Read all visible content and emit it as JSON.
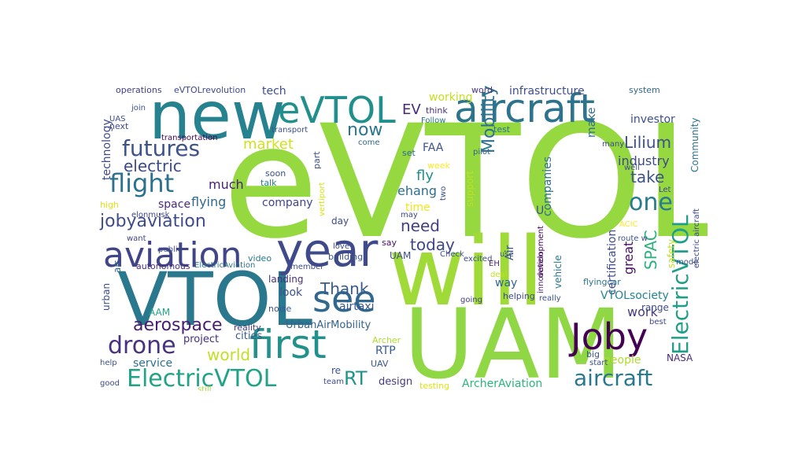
{
  "cloud": {
    "words": [
      {
        "text": "eVTOL",
        "color": "#95d840"
      },
      {
        "text": "UAM",
        "color": "#8fd744"
      },
      {
        "text": "will",
        "color": "#a0da39"
      },
      {
        "text": "VTOL",
        "color": "#2a788e"
      },
      {
        "text": "new",
        "color": "#26828e"
      },
      {
        "text": "eVTOL",
        "color": "#21908d"
      },
      {
        "text": "aircraft",
        "color": "#2c738e"
      },
      {
        "text": "year",
        "color": "#3e4a89"
      },
      {
        "text": "aviation",
        "color": "#404588"
      },
      {
        "text": "see",
        "color": "#31688e"
      },
      {
        "text": "first",
        "color": "#21918c"
      },
      {
        "text": "Joby",
        "color": "#440154"
      },
      {
        "text": "ElectricVTOL",
        "color": "#20a386"
      },
      {
        "text": "aircraft",
        "color": "#2a788e"
      },
      {
        "text": "ElectricVTOL",
        "color": "#1f9e89"
      },
      {
        "text": "futures",
        "color": "#3b528b"
      },
      {
        "text": "flight",
        "color": "#2c728e"
      },
      {
        "text": "drone",
        "color": "#46327e"
      },
      {
        "text": "electric",
        "color": "#3e4989"
      },
      {
        "text": "jobyaviation",
        "color": "#3e4c8a"
      },
      {
        "text": "aerospace",
        "color": "#481f70"
      },
      {
        "text": "one",
        "color": "#287c8e"
      },
      {
        "text": "Lilium",
        "color": "#3b518b"
      },
      {
        "text": "now",
        "color": "#2a768e"
      },
      {
        "text": "market",
        "color": "#d0e11c"
      },
      {
        "text": "today",
        "color": "#3f4788"
      },
      {
        "text": "need",
        "color": "#433e85"
      },
      {
        "text": "world",
        "color": "#c2df23"
      },
      {
        "text": "Thank",
        "color": "#365c8d"
      },
      {
        "text": "Mobility",
        "color": "#2d718e"
      },
      {
        "text": "take",
        "color": "#3a548c"
      },
      {
        "text": "industry",
        "color": "#3f4889"
      },
      {
        "text": "SPAC",
        "color": "#2db27d"
      },
      {
        "text": "RT",
        "color": "#1f948c"
      },
      {
        "text": "RTP",
        "color": "#355e8d"
      },
      {
        "text": "EV",
        "color": "#482878"
      },
      {
        "text": "tech",
        "color": "#3c4f8a"
      },
      {
        "text": "infrastructure",
        "color": "#3d4e8a"
      },
      {
        "text": "working",
        "color": "#c5e021"
      },
      {
        "text": "make",
        "color": "#2e6e8e"
      },
      {
        "text": "investor",
        "color": "#3c508b"
      },
      {
        "text": "Community",
        "color": "#2a768e"
      },
      {
        "text": "technology",
        "color": "#3f4889"
      },
      {
        "text": "operations",
        "color": "#433d84"
      },
      {
        "text": "eVTOLrevolution",
        "color": "#3e4a89"
      },
      {
        "text": "word",
        "color": "#453781"
      },
      {
        "text": "system",
        "color": "#31688e"
      },
      {
        "text": "much",
        "color": "#482173"
      },
      {
        "text": "flying",
        "color": "#31688e"
      },
      {
        "text": "space",
        "color": "#472c7a"
      },
      {
        "text": "company",
        "color": "#404688"
      },
      {
        "text": "fly",
        "color": "#20928c"
      },
      {
        "text": "FAA",
        "color": "#3b528b"
      },
      {
        "text": "ehang",
        "color": "#2e6f8e"
      },
      {
        "text": "time",
        "color": "#f1e51d"
      },
      {
        "text": "companies",
        "color": "#2d708e"
      },
      {
        "text": "certification",
        "color": "#3e4a89"
      },
      {
        "text": "great",
        "color": "#470d60"
      },
      {
        "text": "safety",
        "color": "#c8e020"
      },
      {
        "text": "work",
        "color": "#443a83"
      },
      {
        "text": "range",
        "color": "#3e4c8a"
      },
      {
        "text": "VTOLsociety",
        "color": "#25858e"
      },
      {
        "text": "people",
        "color": "#addc30"
      },
      {
        "text": "NASA",
        "color": "#472a7a"
      },
      {
        "text": "service",
        "color": "#2d718e"
      },
      {
        "text": "project",
        "color": "#46307e"
      },
      {
        "text": "cities",
        "color": "#365d8d"
      },
      {
        "text": "UrbanAirMobility",
        "color": "#33638d"
      },
      {
        "text": "airtaxi",
        "color": "#39568c"
      },
      {
        "text": "look",
        "color": "#3b518b"
      },
      {
        "text": "landing",
        "color": "#472f7d"
      },
      {
        "text": "design",
        "color": "#443983"
      },
      {
        "text": "ArcherAviation",
        "color": "#2eb37c"
      },
      {
        "text": "testing",
        "color": "#dde318"
      },
      {
        "text": "say",
        "color": "#471365"
      },
      {
        "text": "day",
        "color": "#3f4889"
      },
      {
        "text": "way",
        "color": "#32658e"
      },
      {
        "text": "AAM",
        "color": "#20a486"
      },
      {
        "text": "UAM",
        "color": "#3d4d8a"
      },
      {
        "text": "Air",
        "color": "#3a538b"
      },
      {
        "text": "vehicle",
        "color": "#2a778e"
      },
      {
        "text": "innovation",
        "color": "#481c6e"
      },
      {
        "text": "development",
        "color": "#440154"
      },
      {
        "text": "flyingcar",
        "color": "#2c728e"
      },
      {
        "text": "urban",
        "color": "#3d4d8a"
      },
      {
        "text": "air",
        "color": "#31678e"
      },
      {
        "text": "autonomous",
        "color": "#472d7b"
      },
      {
        "text": "ElectricAviation",
        "color": "#2d718e"
      },
      {
        "text": "reality",
        "color": "#453882"
      },
      {
        "text": "noise",
        "color": "#39568c"
      },
      {
        "text": "building",
        "color": "#3b528b"
      },
      {
        "text": "video",
        "color": "#2a788e"
      },
      {
        "text": "public",
        "color": "#3e4c8a"
      },
      {
        "text": "want",
        "color": "#404688"
      },
      {
        "text": "high",
        "color": "#dfe318"
      },
      {
        "text": "elonmusk",
        "color": "#3e4989"
      },
      {
        "text": "soon",
        "color": "#3c4f8a"
      },
      {
        "text": "talk",
        "color": "#287d8e"
      },
      {
        "text": "part",
        "color": "#3b528b"
      },
      {
        "text": "vertiport",
        "color": "#d8e219"
      },
      {
        "text": "support",
        "color": "#c0df25"
      },
      {
        "text": "two",
        "color": "#3a538b"
      },
      {
        "text": "week",
        "color": "#fde725"
      },
      {
        "text": "set",
        "color": "#2f6c8e"
      },
      {
        "text": "come",
        "color": "#31688e"
      },
      {
        "text": "pilot",
        "color": "#33638d"
      },
      {
        "text": "test",
        "color": "#2c738e"
      },
      {
        "text": "many",
        "color": "#3e4a89"
      },
      {
        "text": "well",
        "color": "#3b528b"
      },
      {
        "text": "Let",
        "color": "#3e4989"
      },
      {
        "text": "ACIC",
        "color": "#fde725"
      },
      {
        "text": "think",
        "color": "#46337f"
      },
      {
        "text": "Follow",
        "color": "#2c738e"
      },
      {
        "text": "transport",
        "color": "#3b528b"
      },
      {
        "text": "transportation",
        "color": "#440154"
      },
      {
        "text": "next",
        "color": "#3e4989"
      },
      {
        "text": "join",
        "color": "#3b528b"
      },
      {
        "text": "UAS",
        "color": "#3d4e8a"
      },
      {
        "text": "excited",
        "color": "#3e4c8a"
      },
      {
        "text": "use",
        "color": "#3b528b"
      },
      {
        "text": "EH",
        "color": "#482374"
      },
      {
        "text": "deal",
        "color": "#c2df23"
      },
      {
        "text": "helping",
        "color": "#3e4989"
      },
      {
        "text": "going",
        "color": "#433e85"
      },
      {
        "text": "really",
        "color": "#3b528b"
      },
      {
        "text": "love",
        "color": "#3e4989"
      },
      {
        "text": "Check",
        "color": "#3a548c"
      },
      {
        "text": "member",
        "color": "#3e4989"
      },
      {
        "text": "Archer",
        "color": "#addc30"
      },
      {
        "text": "UAV",
        "color": "#3b528b"
      },
      {
        "text": "team",
        "color": "#3e4c8a"
      },
      {
        "text": "still",
        "color": "#a5db36"
      },
      {
        "text": "help",
        "color": "#3b528b"
      },
      {
        "text": "good",
        "color": "#3e4a89"
      },
      {
        "text": "start",
        "color": "#3d4e8a"
      },
      {
        "text": "big",
        "color": "#3b528b"
      },
      {
        "text": "best",
        "color": "#3e4989"
      },
      {
        "text": "mode",
        "color": "#3c4f8a"
      },
      {
        "text": "route w",
        "color": "#3b528b"
      },
      {
        "text": "electric aircraft",
        "color": "#3e4989"
      },
      {
        "text": "may",
        "color": "#3e4989"
      },
      {
        "text": "U",
        "color": "#3b528b"
      },
      {
        "text": "re",
        "color": "#3b528b"
      }
    ]
  }
}
